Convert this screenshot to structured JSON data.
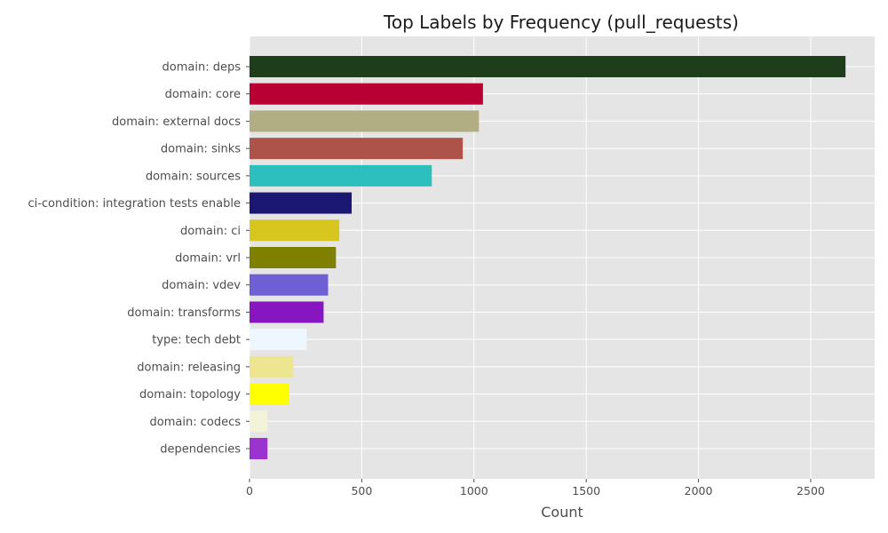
{
  "chart_data": {
    "type": "bar",
    "orientation": "horizontal",
    "title": "Top Labels by Frequency (pull_requests)",
    "xlabel": "Count",
    "ylabel": "",
    "xlim": [
      0,
      2785
    ],
    "xticks": [
      0,
      500,
      1000,
      1500,
      2000,
      2500
    ],
    "grid": true,
    "background": "#e5e5e5",
    "grid_color": "#ffffff",
    "categories": [
      "domain: deps",
      "domain: core",
      "domain: external docs",
      "domain: sinks",
      "domain: sources",
      "ci-condition: integration tests enable",
      "domain: ci",
      "domain: vrl",
      "domain: vdev",
      "domain: transforms",
      "type: tech debt",
      "domain: releasing",
      "domain: topology",
      "domain: codecs",
      "dependencies"
    ],
    "values": [
      2655,
      1040,
      1022,
      950,
      812,
      455,
      400,
      385,
      350,
      330,
      255,
      195,
      175,
      80,
      80
    ],
    "colors": [
      "#1e3d1a",
      "#b80035",
      "#b2ae83",
      "#ad534a",
      "#2dbfbd",
      "#1a1873",
      "#d6c61e",
      "#808000",
      "#6e5fd4",
      "#8716c1",
      "#eef6ff",
      "#ede58f",
      "#ffff00",
      "#f3f3da",
      "#9a33cf"
    ]
  }
}
